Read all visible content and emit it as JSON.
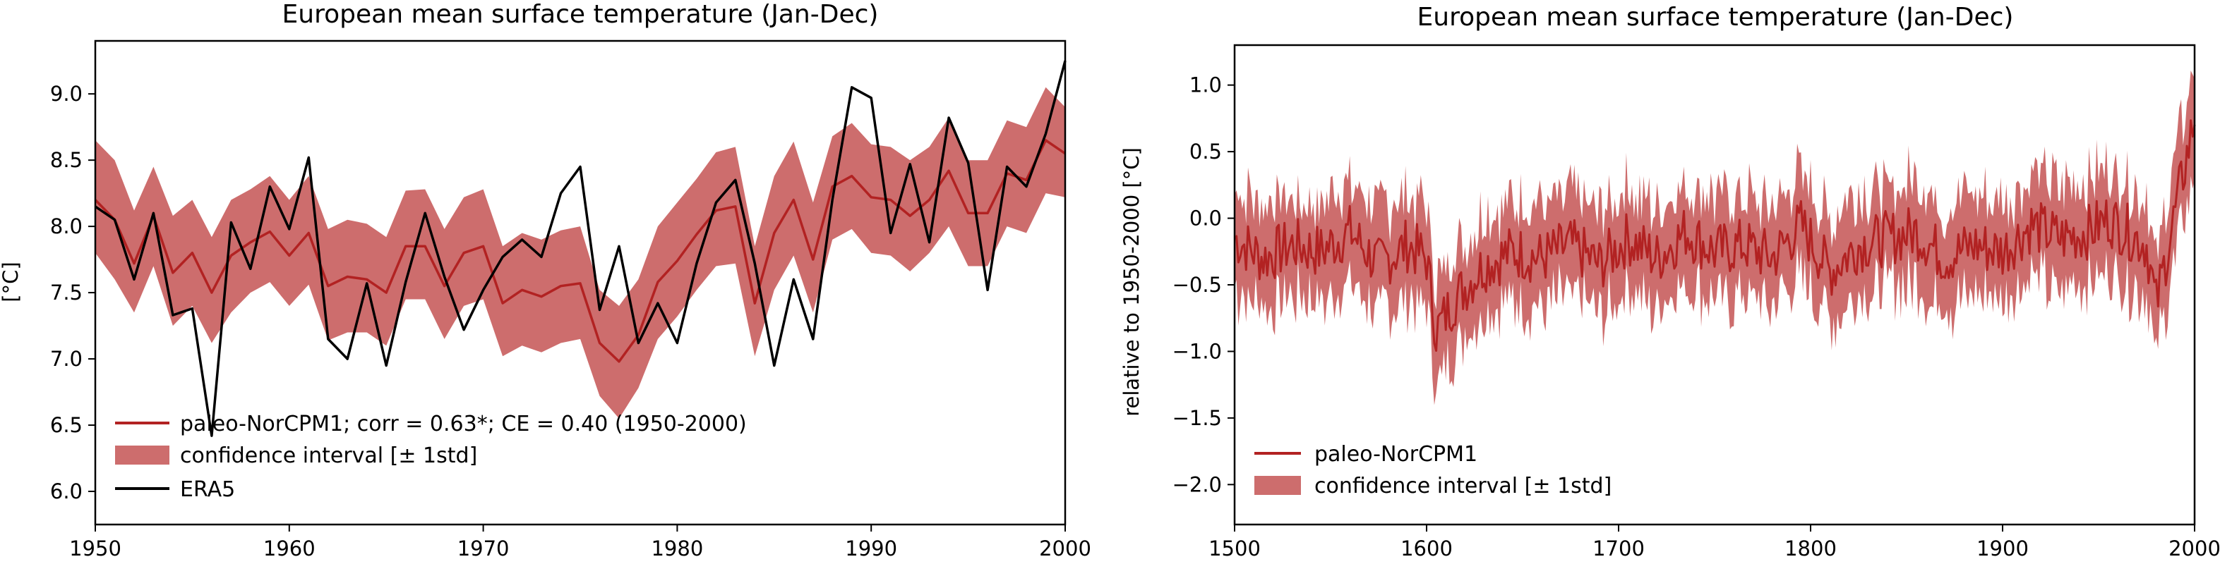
{
  "colors": {
    "model": "#b22222",
    "band": "#cd6d6d",
    "obs": "#000000"
  },
  "chart_data": [
    {
      "type": "line",
      "title": "European mean surface temperature (Jan-Dec)",
      "xlabel": "",
      "ylabel": "[°C]",
      "xlim": [
        1950,
        2000
      ],
      "ylim": [
        5.75,
        9.4
      ],
      "xticks": [
        1950,
        1960,
        1970,
        1980,
        1990,
        2000
      ],
      "yticks": [
        6.0,
        6.5,
        7.0,
        7.5,
        8.0,
        8.5,
        9.0
      ],
      "xtick_labels": [
        "1950",
        "1960",
        "1970",
        "1980",
        "1990",
        "2000"
      ],
      "ytick_labels": [
        "6.0",
        "6.5",
        "7.0",
        "7.5",
        "8.0",
        "8.5",
        "9.0"
      ],
      "legend_position": "lower-left",
      "x": [
        1950,
        1951,
        1952,
        1953,
        1954,
        1955,
        1956,
        1957,
        1958,
        1959,
        1960,
        1961,
        1962,
        1963,
        1964,
        1965,
        1966,
        1967,
        1968,
        1969,
        1970,
        1971,
        1972,
        1973,
        1974,
        1975,
        1976,
        1977,
        1978,
        1979,
        1980,
        1981,
        1982,
        1983,
        1984,
        1985,
        1986,
        1987,
        1988,
        1989,
        1990,
        1991,
        1992,
        1993,
        1994,
        1995,
        1996,
        1997,
        1998,
        1999,
        2000
      ],
      "series": [
        {
          "name": "paleo-NorCPM1; corr = 0.63*; CE = 0.40 (1950-2000)",
          "kind": "line",
          "color": "#b22222",
          "values": [
            8.2,
            8.05,
            7.72,
            8.08,
            7.65,
            7.8,
            7.5,
            7.78,
            7.88,
            7.96,
            7.78,
            7.95,
            7.55,
            7.62,
            7.6,
            7.5,
            7.85,
            7.85,
            7.55,
            7.8,
            7.85,
            7.42,
            7.52,
            7.47,
            7.55,
            7.57,
            7.12,
            6.98,
            7.18,
            7.58,
            7.74,
            7.94,
            8.12,
            8.15,
            7.42,
            7.95,
            8.2,
            7.75,
            8.3,
            8.38,
            8.22,
            8.2,
            8.08,
            8.2,
            8.42,
            8.1,
            8.1,
            8.4,
            8.35,
            8.65,
            8.55
          ]
        },
        {
          "name": "confidence interval [± 1std]",
          "kind": "band",
          "color": "#cd6d6d",
          "lower": [
            7.8,
            7.6,
            7.35,
            7.7,
            7.25,
            7.4,
            7.12,
            7.35,
            7.5,
            7.58,
            7.4,
            7.56,
            7.14,
            7.2,
            7.2,
            7.1,
            7.45,
            7.45,
            7.15,
            7.4,
            7.45,
            7.02,
            7.1,
            7.05,
            7.12,
            7.15,
            6.72,
            6.55,
            6.78,
            7.15,
            7.32,
            7.52,
            7.7,
            7.72,
            7.02,
            7.52,
            7.78,
            7.35,
            7.9,
            7.98,
            7.8,
            7.78,
            7.66,
            7.8,
            8.0,
            7.7,
            7.7,
            8.0,
            7.95,
            8.25,
            8.22
          ],
          "upper": [
            8.65,
            8.5,
            8.12,
            8.45,
            8.08,
            8.2,
            7.92,
            8.2,
            8.28,
            8.38,
            8.2,
            8.38,
            7.98,
            8.05,
            8.02,
            7.92,
            8.27,
            8.28,
            7.98,
            8.22,
            8.28,
            7.85,
            7.95,
            7.9,
            7.97,
            8.0,
            7.52,
            7.4,
            7.6,
            8.0,
            8.18,
            8.36,
            8.56,
            8.6,
            7.85,
            8.38,
            8.64,
            8.18,
            8.68,
            8.78,
            8.62,
            8.6,
            8.5,
            8.6,
            8.82,
            8.5,
            8.5,
            8.8,
            8.75,
            9.05,
            8.9
          ]
        },
        {
          "name": "ERA5",
          "kind": "line",
          "color": "#000000",
          "values": [
            8.15,
            8.05,
            7.6,
            8.1,
            7.33,
            7.38,
            6.42,
            8.03,
            7.68,
            8.3,
            7.98,
            8.52,
            7.15,
            7.0,
            7.57,
            6.95,
            7.58,
            8.1,
            7.62,
            7.22,
            7.52,
            7.77,
            7.9,
            7.77,
            8.25,
            8.45,
            7.37,
            7.85,
            7.12,
            7.42,
            7.12,
            7.72,
            8.18,
            8.35,
            7.72,
            6.95,
            7.6,
            7.15,
            8.2,
            9.05,
            8.97,
            7.95,
            8.47,
            7.88,
            8.82,
            8.48,
            7.52,
            8.45,
            8.3,
            8.7,
            9.25
          ]
        }
      ]
    },
    {
      "type": "line",
      "title": "European mean surface temperature (Jan-Dec)",
      "xlabel": "",
      "ylabel": "relative to 1950-2000 [°C]",
      "xlim": [
        1500,
        2000
      ],
      "ylim": [
        -2.3,
        1.3
      ],
      "xticks": [
        1500,
        1600,
        1700,
        1800,
        1900,
        2000
      ],
      "yticks": [
        -2.0,
        -1.5,
        -1.0,
        -0.5,
        0.0,
        0.5,
        1.0
      ],
      "xtick_labels": [
        "1500",
        "1600",
        "1700",
        "1800",
        "1900",
        "2000"
      ],
      "ytick_labels": [
        "−2.0",
        "−1.5",
        "−1.0",
        "−0.5",
        "0.0",
        "0.5",
        "1.0"
      ],
      "legend_position": "lower-left",
      "band_halfwidth": 0.38,
      "x": [
        1500,
        1515,
        1530,
        1545,
        1560,
        1575,
        1590,
        1600,
        1605,
        1615,
        1630,
        1645,
        1660,
        1675,
        1690,
        1705,
        1720,
        1735,
        1750,
        1765,
        1780,
        1795,
        1810,
        1825,
        1840,
        1855,
        1870,
        1885,
        1900,
        1915,
        1930,
        1945,
        1955,
        1965,
        1975,
        1980,
        1990,
        2000
      ],
      "series": [
        {
          "name": "paleo-NorCPM1",
          "kind": "line",
          "color": "#b22222",
          "values": [
            -0.15,
            -0.3,
            -0.2,
            -0.25,
            -0.1,
            -0.35,
            -0.2,
            -0.3,
            -0.85,
            -0.6,
            -0.35,
            -0.25,
            -0.3,
            -0.2,
            -0.35,
            -0.15,
            -0.3,
            -0.1,
            -0.25,
            -0.2,
            -0.3,
            -0.05,
            -0.4,
            -0.2,
            -0.15,
            -0.1,
            -0.3,
            -0.2,
            -0.25,
            -0.05,
            -0.15,
            -0.1,
            0.0,
            -0.1,
            -0.2,
            -0.65,
            0.05,
            0.75
          ]
        },
        {
          "name": "confidence interval [± 1std]",
          "kind": "band",
          "color": "#cd6d6d"
        }
      ]
    }
  ]
}
